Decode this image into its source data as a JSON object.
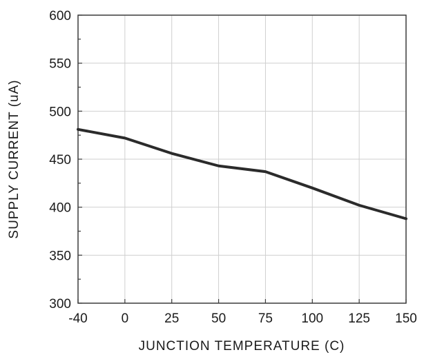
{
  "chart_data": {
    "type": "line",
    "title": "",
    "xlabel": "JUNCTION TEMPERATURE (C)",
    "ylabel": "SUPPLY CURRENT (uA)",
    "categories": [
      "-40",
      "0",
      "25",
      "50",
      "75",
      "100",
      "125",
      "150"
    ],
    "ylim": [
      300,
      600
    ],
    "yticks": [
      "300",
      "350",
      "400",
      "450",
      "500",
      "550",
      "600"
    ],
    "grid": true,
    "legend": "none",
    "series": [
      {
        "values": [
          481,
          472,
          456,
          443,
          437,
          420,
          402,
          388
        ],
        "color": "#2b2b2b"
      }
    ]
  }
}
